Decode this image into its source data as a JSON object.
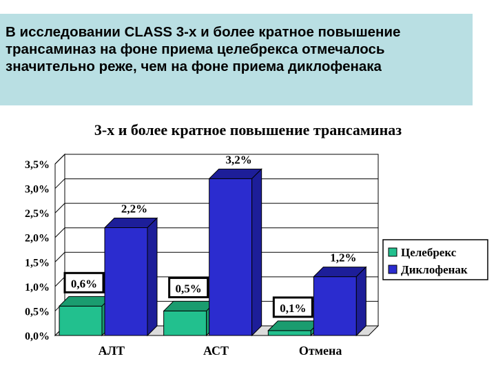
{
  "header": {
    "text": "В исследовании CLASS 3-х и более кратное повышение трансаминаз на фоне приема целебрекса отмечалось значительно реже, чем на фоне приема диклофенака"
  },
  "chart_data": {
    "type": "bar",
    "title": "3-х и более кратное повышение трансаминаз",
    "categories": [
      "АЛТ",
      "АСТ",
      "Отмена"
    ],
    "series": [
      {
        "name": "Целебрекс",
        "values": [
          0.6,
          0.5,
          0.1
        ],
        "labels": [
          "0,6%",
          "0,5%",
          "0,1%"
        ],
        "color": "#22c08e",
        "top_color": "#1a9c6f"
      },
      {
        "name": "Диклофенак",
        "values": [
          2.2,
          3.2,
          1.2
        ],
        "labels": [
          "2,2%",
          "3,2%",
          "1,2%"
        ],
        "color": "#2b2ccf",
        "top_color": "#1d1e99"
      }
    ],
    "ylim": [
      0,
      3.5
    ],
    "yticks": [
      "0,0%",
      "0,5%",
      "1,0%",
      "1,5%",
      "2,0%",
      "2,5%",
      "3,0%",
      "3,5%"
    ],
    "gridlines": true,
    "legend_position": "right"
  }
}
